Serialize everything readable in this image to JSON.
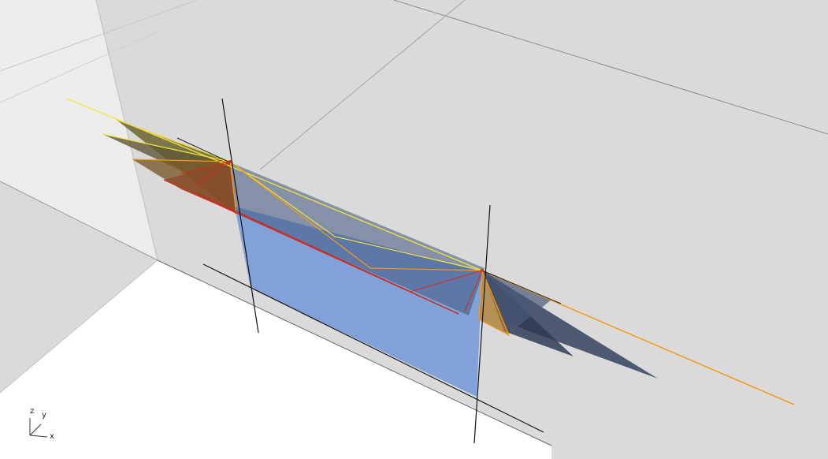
{
  "viewport": {
    "background": "#dadada",
    "floor_color": "#ffffff",
    "wall_color": "#ebebeb",
    "glass_color": "#6f99dc",
    "dark_panel_color": "#3d4c6a",
    "yellow_edge": "#f2e43a",
    "orange_edge": "#f49a16",
    "red_edge": "#d82a1a"
  },
  "axis_gizmo": {
    "z_label": "z",
    "y_label": "y",
    "x_label": "x"
  }
}
